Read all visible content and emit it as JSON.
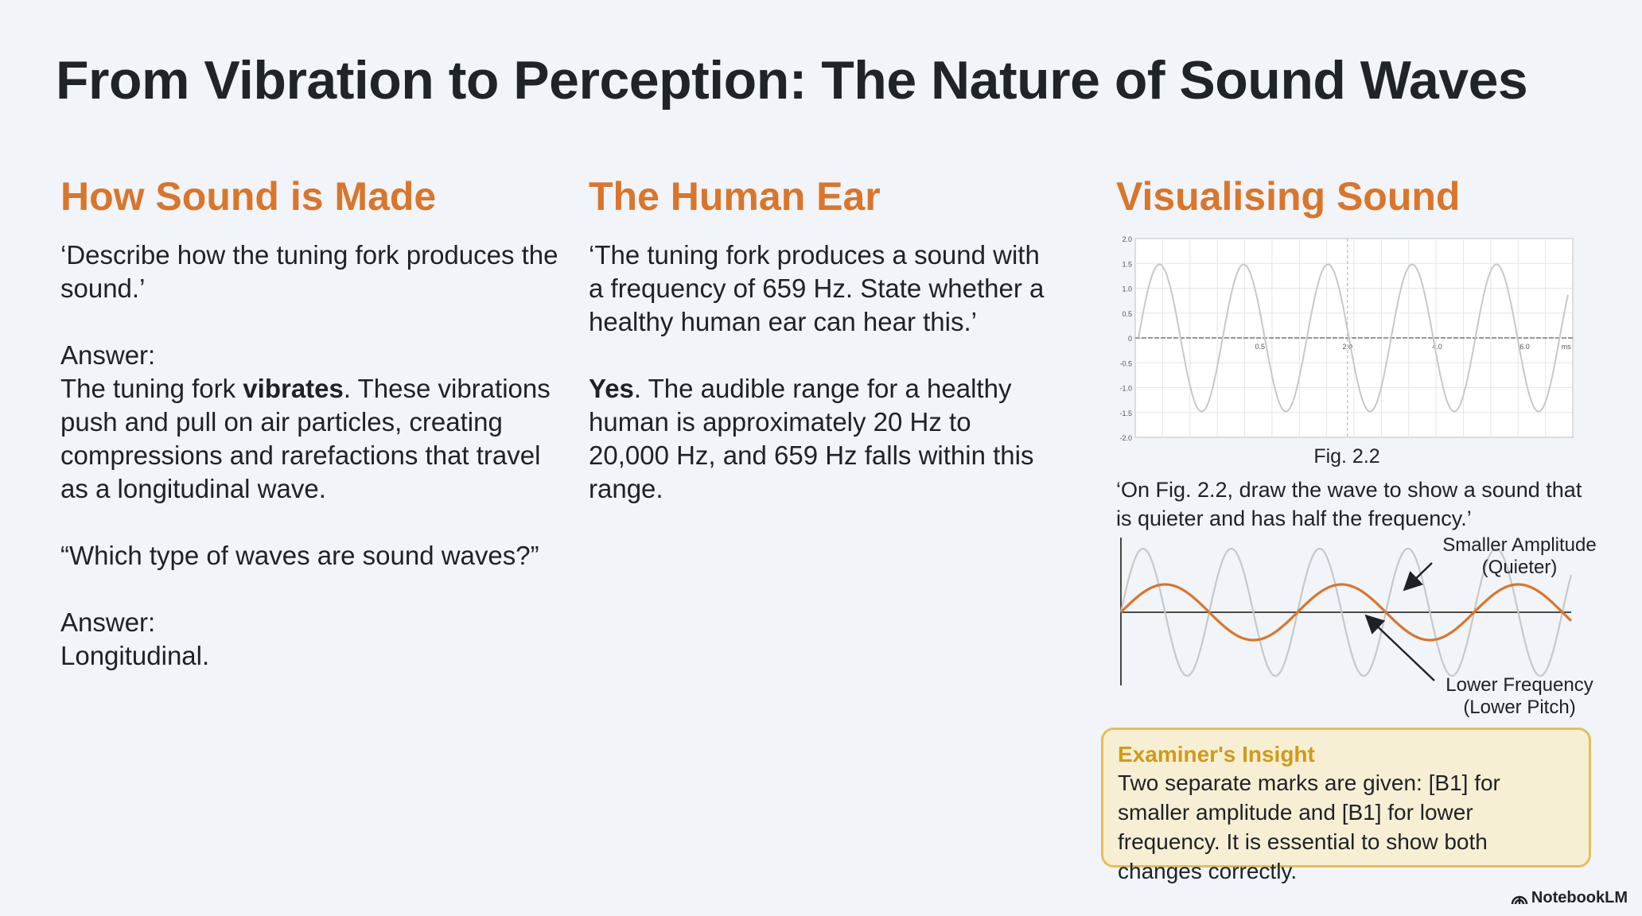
{
  "title": "From Vibration to Perception: The Nature of Sound Waves",
  "col1": {
    "heading": "How Sound is Made",
    "q1": "‘Describe how the tuning fork produces the sound.’",
    "a1_label": "Answer:",
    "a1_pre": "The tuning fork ",
    "a1_bold": "vibrates",
    "a1_post": ". These vibrations push and pull on air particles, creating compressions and rarefactions that travel as a longitudinal wave.",
    "q2": "“Which type of waves are sound waves?”",
    "a2_label": "Answer:",
    "a2": "Longitudinal."
  },
  "col2": {
    "heading": "The Human Ear",
    "q1": "‘The tuning fork produces a sound with a frequency of 659 Hz. State whether a healthy human ear can hear this.’",
    "a1_bold": "Yes",
    "a1_post": ". The audible range for a healthy human is approximately 20 Hz to 20,000 Hz, and 659 Hz falls within this range."
  },
  "col3": {
    "heading": "Visualising Sound",
    "fig_caption": "Fig. 2.2",
    "fig_y_ticks": [
      "2.0",
      "1.5",
      "1.0",
      "0.5",
      "0",
      "-0.5",
      "-1.0",
      "-1.5",
      "-2.0"
    ],
    "fig_x_ticks": [
      "0.5",
      "2.0",
      "4.0",
      "6.0",
      "ms"
    ],
    "question": "‘On Fig. 2.2, draw the wave to show a sound that is quieter and has half the frequency.’",
    "annotation_amplitude_1": "Smaller Amplitude",
    "annotation_amplitude_2": "(Quieter)",
    "annotation_frequency_1": "Lower Frequency",
    "annotation_frequency_2": "(Lower Pitch)",
    "wave_color_original": "#c6c8ca",
    "wave_color_new": "#d9762b"
  },
  "insight": {
    "title": "Examiner's Insight",
    "text": "Two separate marks are given: [B1] for smaller amplitude and [B1] for lower frequency. It is essential to show both changes correctly."
  },
  "brand": "NotebookLM",
  "colors": {
    "accent": "#d9762b",
    "insight_border": "#e3bf5b",
    "insight_bg": "#f7efd4"
  }
}
